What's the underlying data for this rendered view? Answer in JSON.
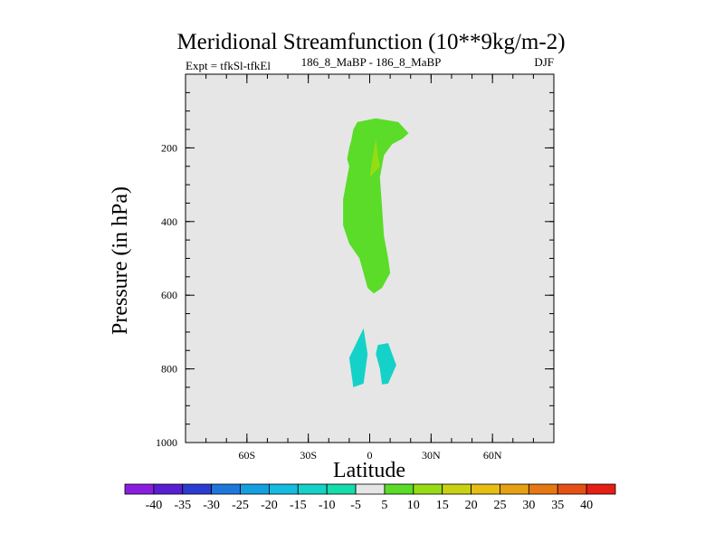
{
  "chart_data": {
    "type": "contour",
    "title": "Meridional Streamfunction (10**9kg/m-2)",
    "subtitle_left": "Expt = tfkSl-tfkEl",
    "subtitle_center": "186_8_MaBP - 186_8_MaBP",
    "subtitle_right": "DJF",
    "xlabel": "Latitude",
    "ylabel": "Pressure (in hPa)",
    "xlim": [
      -90,
      90
    ],
    "ylim": [
      1000,
      0
    ],
    "x_ticks": [
      {
        "value": -60,
        "label": "60S"
      },
      {
        "value": -30,
        "label": "30S"
      },
      {
        "value": 0,
        "label": "0"
      },
      {
        "value": 30,
        "label": "30N"
      },
      {
        "value": 60,
        "label": "60N"
      }
    ],
    "y_ticks": [
      {
        "value": 200,
        "label": "200"
      },
      {
        "value": 400,
        "label": "400"
      },
      {
        "value": 600,
        "label": "600"
      },
      {
        "value": 800,
        "label": "800"
      },
      {
        "value": 1000,
        "label": "1000"
      }
    ],
    "colorbar": {
      "labels": [
        "-40",
        "-35",
        "-30",
        "-25",
        "-20",
        "-15",
        "-10",
        "-5",
        "5",
        "10",
        "15",
        "20",
        "25",
        "30",
        "35",
        "40"
      ],
      "colors": [
        "#8a1ee0",
        "#5a1ed2",
        "#2c3cd0",
        "#1e78dc",
        "#14a0e0",
        "#14bce0",
        "#14d2c8",
        "#14dcaa",
        "#e6e6e6",
        "#5adc28",
        "#96dc14",
        "#c8d214",
        "#e6be14",
        "#e6a014",
        "#e67814",
        "#e65014",
        "#e61e14"
      ]
    },
    "background_color": "#e6e6e6",
    "contours": [
      {
        "level": "5 to 10",
        "color": "#5adc28",
        "points": [
          [
            -8,
            150
          ],
          [
            -6,
            130
          ],
          [
            3,
            120
          ],
          [
            14,
            130
          ],
          [
            19,
            160
          ],
          [
            16,
            175
          ],
          [
            11,
            190
          ],
          [
            7,
            220
          ],
          [
            5,
            280
          ],
          [
            6,
            360
          ],
          [
            7,
            440
          ],
          [
            9,
            500
          ],
          [
            10,
            540
          ],
          [
            6,
            580
          ],
          [
            2,
            595
          ],
          [
            -1,
            580
          ],
          [
            -3,
            540
          ],
          [
            -5,
            500
          ],
          [
            -10,
            460
          ],
          [
            -13,
            410
          ],
          [
            -13,
            340
          ],
          [
            -11,
            280
          ],
          [
            -10,
            250
          ],
          [
            -11,
            230
          ],
          [
            -10,
            200
          ],
          [
            -9,
            180
          ]
        ]
      },
      {
        "level": "10 to 15",
        "color": "#96dc14",
        "points": [
          [
            3,
            175
          ],
          [
            4,
            220
          ],
          [
            5,
            250
          ],
          [
            0,
            280
          ],
          [
            1,
            240
          ]
        ]
      },
      {
        "level": "-10 to -5",
        "color": "#14d2c8",
        "points": [
          [
            -3,
            690
          ],
          [
            -1,
            760
          ],
          [
            -3,
            840
          ],
          [
            -8,
            850
          ],
          [
            -10,
            770
          ]
        ]
      },
      {
        "level": "-10 to -5",
        "color": "#14d2c8",
        "points": [
          [
            4,
            735
          ],
          [
            9,
            730
          ],
          [
            13,
            790
          ],
          [
            9,
            840
          ],
          [
            6,
            842
          ],
          [
            5,
            800
          ],
          [
            3,
            760
          ]
        ]
      }
    ]
  }
}
